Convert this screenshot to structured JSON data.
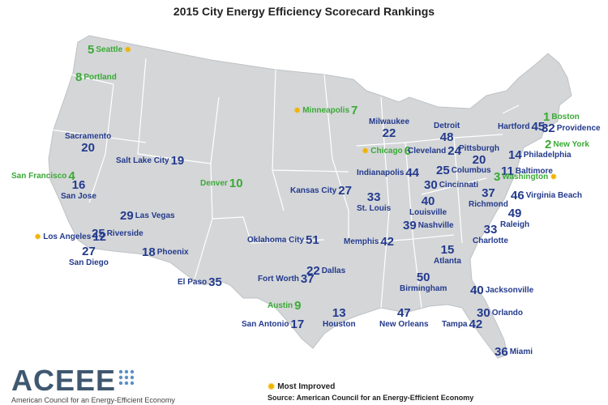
{
  "title": "2015 City Energy Efficiency Scorecard Rankings",
  "colors": {
    "rank_blue": "#233a8c",
    "improved_green": "#3aaa35",
    "star": "#f0b400",
    "land": "#d4d6d8",
    "border": "#ffffff"
  },
  "cities": [
    {
      "name": "Seattle",
      "rank": "5",
      "style": "green",
      "improved": true,
      "pos": "sea"
    },
    {
      "name": "Portland",
      "rank": "8",
      "style": "green",
      "improved": false,
      "pos": "por"
    },
    {
      "name": "Minneapolis",
      "rank": "7",
      "style": "green",
      "improved": true,
      "pos": "min"
    },
    {
      "name": "Boston",
      "rank": "1",
      "style": "green",
      "improved": false,
      "pos": "bos"
    },
    {
      "name": "New York",
      "rank": "2",
      "style": "green",
      "improved": false,
      "pos": "nyc"
    },
    {
      "name": "Hartford",
      "rank": "45",
      "style": "blue",
      "improved": false,
      "pos": "har"
    },
    {
      "name": "Providence",
      "rank": "32",
      "style": "blue",
      "improved": false,
      "pos": "pro"
    },
    {
      "name": "Milwaukee",
      "rank": "22",
      "style": "blue",
      "improved": false,
      "pos": "mil"
    },
    {
      "name": "Detroit",
      "rank": "48",
      "style": "blue",
      "improved": false,
      "pos": "det"
    },
    {
      "name": "Chicago",
      "rank": "6",
      "style": "green",
      "improved": true,
      "pos": "chi"
    },
    {
      "name": "Cleveland",
      "rank": "24",
      "style": "blue",
      "improved": false,
      "pos": "cle"
    },
    {
      "name": "Pittsburgh",
      "rank": "20",
      "style": "blue",
      "improved": false,
      "pos": "pit"
    },
    {
      "name": "Philadelphia",
      "rank": "14",
      "style": "blue",
      "improved": false,
      "pos": "phi"
    },
    {
      "name": "Baltimore",
      "rank": "11",
      "style": "blue",
      "improved": false,
      "pos": "bal"
    },
    {
      "name": "Washington",
      "rank": "3",
      "style": "green",
      "improved": true,
      "pos": "was"
    },
    {
      "name": "Sacramento",
      "rank": "20",
      "style": "blue",
      "improved": false,
      "pos": "sac"
    },
    {
      "name": "San Francisco",
      "rank": "4",
      "style": "green",
      "improved": false,
      "pos": "sf"
    },
    {
      "name": "San Jose",
      "rank": "16",
      "style": "blue",
      "improved": false,
      "pos": "sj"
    },
    {
      "name": "Salt Lake City",
      "rank": "19",
      "style": "blue",
      "improved": false,
      "pos": "slc"
    },
    {
      "name": "Denver",
      "rank": "10",
      "style": "green",
      "improved": false,
      "pos": "den"
    },
    {
      "name": "Kansas City",
      "rank": "27",
      "style": "blue",
      "improved": false,
      "pos": "kc"
    },
    {
      "name": "Indianapolis",
      "rank": "44",
      "style": "blue",
      "improved": false,
      "pos": "ind"
    },
    {
      "name": "Columbus",
      "rank": "25",
      "style": "blue",
      "improved": false,
      "pos": "col"
    },
    {
      "name": "Cincinnati",
      "rank": "30",
      "style": "blue",
      "improved": false,
      "pos": "cin"
    },
    {
      "name": "St. Louis",
      "rank": "33",
      "style": "blue",
      "improved": false,
      "pos": "stl"
    },
    {
      "name": "Louisville",
      "rank": "40",
      "style": "blue",
      "improved": false,
      "pos": "lou"
    },
    {
      "name": "Richmond",
      "rank": "37",
      "style": "blue",
      "improved": false,
      "pos": "ric"
    },
    {
      "name": "Virginia Beach",
      "rank": "46",
      "style": "blue",
      "improved": false,
      "pos": "vb"
    },
    {
      "name": "Raleigh",
      "rank": "49",
      "style": "blue",
      "improved": false,
      "pos": "ral"
    },
    {
      "name": "Las Vegas",
      "rank": "29",
      "style": "blue",
      "improved": false,
      "pos": "lv"
    },
    {
      "name": "Los Angeles",
      "rank": "12",
      "style": "blue",
      "improved": true,
      "pos": "la"
    },
    {
      "name": "Riverside",
      "rank": "25",
      "style": "blue",
      "improved": false,
      "pos": "riv"
    },
    {
      "name": "San Diego",
      "rank": "27",
      "style": "blue",
      "improved": false,
      "pos": "sd"
    },
    {
      "name": "Phoenix",
      "rank": "18",
      "style": "blue",
      "improved": false,
      "pos": "phx"
    },
    {
      "name": "Oklahoma City",
      "rank": "51",
      "style": "blue",
      "improved": false,
      "pos": "okc"
    },
    {
      "name": "Memphis",
      "rank": "42",
      "style": "blue",
      "improved": false,
      "pos": "mem"
    },
    {
      "name": "Nashville",
      "rank": "39",
      "style": "blue",
      "improved": false,
      "pos": "nas"
    },
    {
      "name": "Charlotte",
      "rank": "33",
      "style": "blue",
      "improved": false,
      "pos": "cha"
    },
    {
      "name": "Atlanta",
      "rank": "15",
      "style": "blue",
      "improved": false,
      "pos": "atl"
    },
    {
      "name": "Dallas",
      "rank": "22",
      "style": "blue",
      "improved": false,
      "pos": "dal"
    },
    {
      "name": "Fort Worth",
      "rank": "37",
      "style": "blue",
      "improved": false,
      "pos": "fw"
    },
    {
      "name": "El Paso",
      "rank": "35",
      "style": "blue",
      "improved": false,
      "pos": "elp"
    },
    {
      "name": "Birmingham",
      "rank": "50",
      "style": "blue",
      "improved": false,
      "pos": "bir"
    },
    {
      "name": "Jacksonville",
      "rank": "40",
      "style": "blue",
      "improved": false,
      "pos": "jax"
    },
    {
      "name": "Austin",
      "rank": "9",
      "style": "green",
      "improved": false,
      "pos": "aus"
    },
    {
      "name": "San Antonio",
      "rank": "17",
      "style": "blue",
      "improved": false,
      "pos": "sa"
    },
    {
      "name": "Houston",
      "rank": "13",
      "style": "blue",
      "improved": false,
      "pos": "hou"
    },
    {
      "name": "New Orleans",
      "rank": "47",
      "style": "blue",
      "improved": false,
      "pos": "no"
    },
    {
      "name": "Orlando",
      "rank": "30",
      "style": "blue",
      "improved": false,
      "pos": "orl"
    },
    {
      "name": "Tampa",
      "rank": "42",
      "style": "blue",
      "improved": false,
      "pos": "tam"
    },
    {
      "name": "Miami",
      "rank": "36",
      "style": "blue",
      "improved": false,
      "pos": "mia"
    }
  ],
  "legend": {
    "label": "Most Improved",
    "icon": "star-icon"
  },
  "source": "Source: American Council for an Energy-Efficient Economy",
  "logo": {
    "text": "ACEEE",
    "subtitle": "American Council for an Energy-Efficient Economy"
  }
}
